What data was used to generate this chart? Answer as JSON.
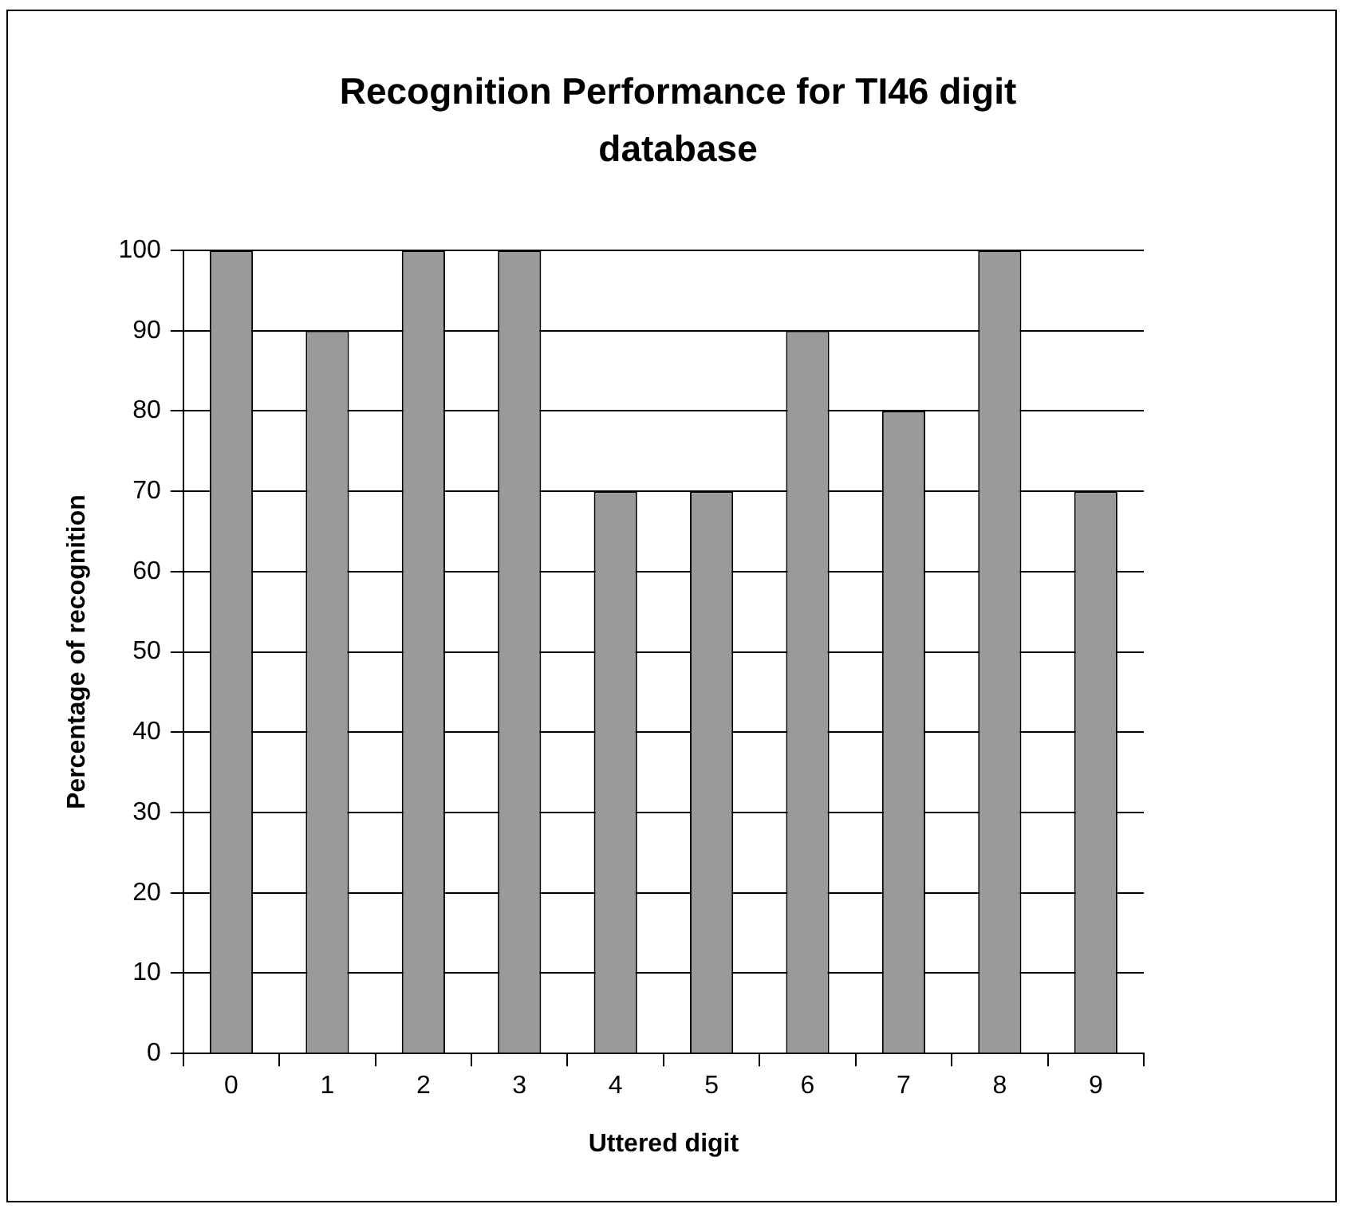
{
  "chart_data": {
    "type": "bar",
    "title": "Recognition Performance for TI46 digit database",
    "xlabel": "Uttered digit",
    "ylabel": "Percentage of recognition",
    "categories": [
      "0",
      "1",
      "2",
      "3",
      "4",
      "5",
      "6",
      "7",
      "8",
      "9"
    ],
    "values": [
      100,
      90,
      100,
      100,
      70,
      70,
      90,
      80,
      100,
      70
    ],
    "color": "#9a9a9a",
    "ylim": [
      0,
      100
    ],
    "yticks": [
      0,
      10,
      20,
      30,
      40,
      50,
      60,
      70,
      80,
      90,
      100
    ],
    "grid": "y",
    "legend": false
  }
}
